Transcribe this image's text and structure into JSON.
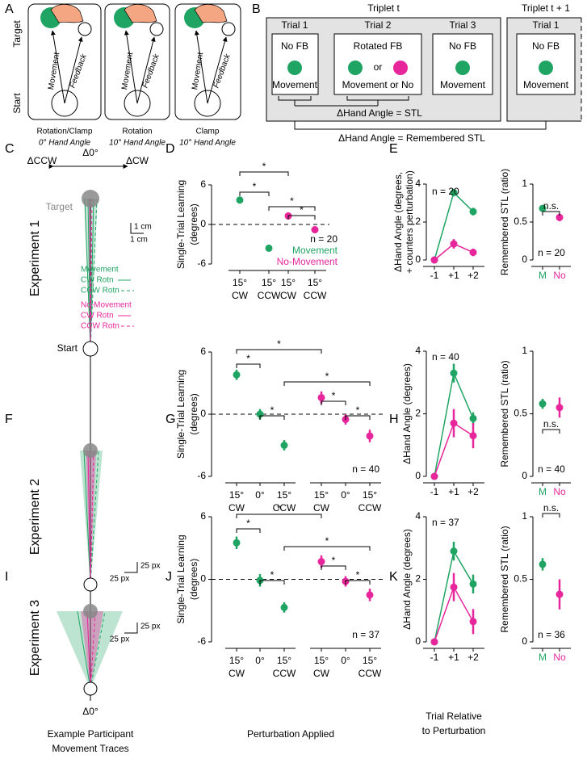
{
  "panel_labels": [
    "A",
    "B",
    "C",
    "D",
    "E",
    "F",
    "G",
    "H",
    "I",
    "J",
    "K"
  ],
  "panel_a": {
    "axis": [
      "Target",
      "Start"
    ],
    "conditions": [
      {
        "movement": "Movement",
        "feedback": "Feedback",
        "name": "Rotation/Clamp",
        "hand_angle": "0° Hand Angle"
      },
      {
        "movement": "Movement",
        "feedback": "Feedback",
        "name": "Rotation",
        "hand_angle": "10° Hand Angle"
      },
      {
        "movement": "Movement",
        "feedback": "Feedback",
        "name": "Clamp",
        "hand_angle": "10° Hand Angle"
      }
    ]
  },
  "panel_b": {
    "triplets": [
      {
        "title": "Triplet t",
        "trials": [
          {
            "name": "Trial 1",
            "feedback": "No FB",
            "outcome": "Movement"
          },
          {
            "name": "Trial 2",
            "feedback": "Rotated FB",
            "or": "or",
            "outcome": "Movement or No"
          },
          {
            "name": "Trial 3",
            "feedback": "No FB",
            "outcome": "Movement"
          }
        ]
      },
      {
        "title": "Triplet t + 1",
        "trials": [
          {
            "name": "Trial 1",
            "feedback": "No FB",
            "outcome": "Movement"
          }
        ]
      }
    ],
    "brackets": [
      "ΔHand Angle = STL",
      "ΔHand Angle = Remembered STL"
    ]
  },
  "traces": {
    "direction": [
      "ΔCCW",
      "Δ0°",
      "ΔCW"
    ],
    "target": "Target",
    "start": "Start",
    "scale_c": [
      "1 cm",
      "1 cm"
    ],
    "legend": [
      {
        "group": "Movement",
        "cw": "CW Rotn",
        "ccw": "CCW Rotn"
      },
      {
        "group": "No-Movement",
        "cw": "CW Rotn",
        "ccw": "CCW Rotn"
      }
    ],
    "experiments": [
      "Experiment 1",
      "Experiment 2",
      "Experiment 3"
    ],
    "scale_f": [
      "25 px",
      "25 px"
    ],
    "scale_i": [
      "25 px",
      "25 px"
    ],
    "bottom": "Δ0°",
    "caption": [
      "Example Participant",
      "Movement Traces"
    ]
  },
  "chart_data": [
    {
      "type": "dot",
      "categories": [
        [
          "15°",
          "CW"
        ],
        [
          "15°",
          "CCW"
        ],
        [
          "15°",
          "CW"
        ],
        [
          "15°",
          "CCW"
        ]
      ],
      "series": [
        {
          "name": "Movement",
          "color": "#20a463",
          "values": [
            3.7,
            -3.6,
            null,
            null
          ],
          "errors": [
            0.3,
            0.3,
            null,
            null
          ]
        },
        {
          "name": "No-Movement",
          "color": "#e8269c",
          "values": [
            null,
            null,
            1.3,
            -0.8
          ],
          "errors": [
            null,
            null,
            0.3,
            0.3
          ]
        }
      ],
      "y_label": [
        "Single-Trial Learning",
        "(degrees)"
      ],
      "ylim": [
        -6,
        6
      ],
      "yticks": [
        -6,
        0,
        6
      ],
      "zero_line": true,
      "n": "n = 20",
      "significance": [
        "*",
        "*",
        "*",
        "*"
      ]
    },
    {
      "type": "line",
      "categories": [
        "-1",
        "+1",
        "+2"
      ],
      "series": [
        {
          "color": "#20a463",
          "values": [
            0,
            3.55,
            2.55
          ],
          "errors": [
            0.05,
            0.2,
            0.2
          ]
        },
        {
          "color": "#e8269c",
          "values": [
            0,
            0.85,
            0.4
          ],
          "errors": [
            0.05,
            0.25,
            0.2
          ]
        }
      ],
      "y_label": [
        "ΔHand Angle (degrees,",
        "+ counters perturbation)"
      ],
      "ylim": [
        0,
        4
      ],
      "yticks": [
        0,
        2,
        4
      ],
      "n": "n = 20"
    },
    {
      "type": "dot",
      "categories": [
        "M",
        "No"
      ],
      "colors": [
        "#20a463",
        "#e8269c"
      ],
      "values": [
        0.68,
        0.56
      ],
      "errors": [
        0.02,
        0.05
      ],
      "y_label": [
        "Remembered STL (ratio)"
      ],
      "ylim": [
        0,
        1
      ],
      "yticks": [
        0,
        0.5,
        1
      ],
      "n": "n = 20",
      "significance": [
        "n.s."
      ]
    },
    {
      "type": "dot",
      "categories": [
        [
          "15°",
          "CW"
        ],
        [
          "0°"
        ],
        [
          "15°",
          "CCW"
        ],
        [
          "15°",
          "CW"
        ],
        [
          "0°"
        ],
        [
          "15°",
          "CCW"
        ]
      ],
      "series": [
        {
          "color": "#20a463",
          "values": [
            3.8,
            0,
            -3.0,
            null,
            null,
            null
          ],
          "errors": [
            0.5,
            0.5,
            0.5,
            null,
            null,
            null
          ]
        },
        {
          "color": "#e8269c",
          "values": [
            null,
            null,
            null,
            1.6,
            -0.5,
            -2.1
          ],
          "errors": [
            null,
            null,
            null,
            0.6,
            0.5,
            0.6
          ]
        }
      ],
      "y_label": [
        "Single-Trial Learning",
        "(degrees)"
      ],
      "ylim": [
        -6,
        6
      ],
      "yticks": [
        -6,
        0,
        6
      ],
      "zero_line": true,
      "n": "n = 40",
      "significance": [
        "*",
        "*",
        "*",
        "*",
        "*",
        "*"
      ]
    },
    {
      "type": "line",
      "categories": [
        "-1",
        "+1",
        "+2"
      ],
      "series": [
        {
          "color": "#20a463",
          "values": [
            0,
            3.3,
            1.85
          ],
          "errors": [
            0.05,
            0.3,
            0.2
          ]
        },
        {
          "color": "#e8269c",
          "values": [
            0,
            1.7,
            1.3
          ],
          "errors": [
            0.05,
            0.45,
            0.4
          ]
        }
      ],
      "y_label": [
        "ΔHand Angle (degrees)"
      ],
      "ylim": [
        0,
        4
      ],
      "yticks": [
        0,
        2,
        4
      ],
      "n": "n = 40"
    },
    {
      "type": "dot",
      "categories": [
        "M",
        "No"
      ],
      "colors": [
        "#20a463",
        "#e8269c"
      ],
      "values": [
        0.58,
        0.55
      ],
      "errors": [
        0.04,
        0.08
      ],
      "y_label": [
        "Remembered STL (ratio)"
      ],
      "ylim": [
        0,
        1
      ],
      "yticks": [
        0,
        0.5,
        1
      ],
      "n": "n = 40",
      "significance": [
        "n.s."
      ]
    },
    {
      "type": "dot",
      "categories": [
        [
          "15°",
          "CW"
        ],
        [
          "0°"
        ],
        [
          "15°",
          "CCW"
        ],
        [
          "15°",
          "CW"
        ],
        [
          "0°"
        ],
        [
          "15°",
          "CCW"
        ]
      ],
      "series": [
        {
          "color": "#20a463",
          "values": [
            3.5,
            -0.1,
            -2.7,
            null,
            null,
            null
          ],
          "errors": [
            0.6,
            0.6,
            0.5,
            null,
            null,
            null
          ]
        },
        {
          "color": "#e8269c",
          "values": [
            null,
            null,
            null,
            1.7,
            -0.2,
            -1.5
          ],
          "errors": [
            null,
            null,
            null,
            0.6,
            0.5,
            0.6
          ]
        }
      ],
      "y_label": [
        "Single-Trial Learning",
        "(degrees)"
      ],
      "ylim": [
        -6,
        6
      ],
      "yticks": [
        -6,
        0,
        6
      ],
      "zero_line": true,
      "n": "n = 37",
      "significance": [
        "*",
        "*",
        "*",
        "*",
        "*",
        "*"
      ],
      "x_label": [
        "Perturbation Applied"
      ]
    },
    {
      "type": "line",
      "categories": [
        "-1",
        "+1",
        "+2"
      ],
      "series": [
        {
          "color": "#20a463",
          "values": [
            0,
            2.9,
            1.85
          ],
          "errors": [
            0.05,
            0.3,
            0.3
          ]
        },
        {
          "color": "#e8269c",
          "values": [
            0,
            1.75,
            0.65
          ],
          "errors": [
            0.05,
            0.45,
            0.4
          ]
        }
      ],
      "y_label": [
        "ΔHand Angle (degrees)"
      ],
      "ylim": [
        0,
        4
      ],
      "yticks": [
        0,
        2,
        4
      ],
      "n": "n = 37",
      "x_label": [
        "Trial Relative",
        "to Perturbation"
      ]
    },
    {
      "type": "dot",
      "categories": [
        "M",
        "No"
      ],
      "colors": [
        "#20a463",
        "#e8269c"
      ],
      "values": [
        0.62,
        0.38
      ],
      "errors": [
        0.05,
        0.12
      ],
      "y_label": [
        "Remembered STL (ratio)"
      ],
      "ylim": [
        0,
        1
      ],
      "yticks": [
        0,
        0.5,
        1
      ],
      "n": "n = 36",
      "significance": [
        "n.s."
      ]
    }
  ]
}
